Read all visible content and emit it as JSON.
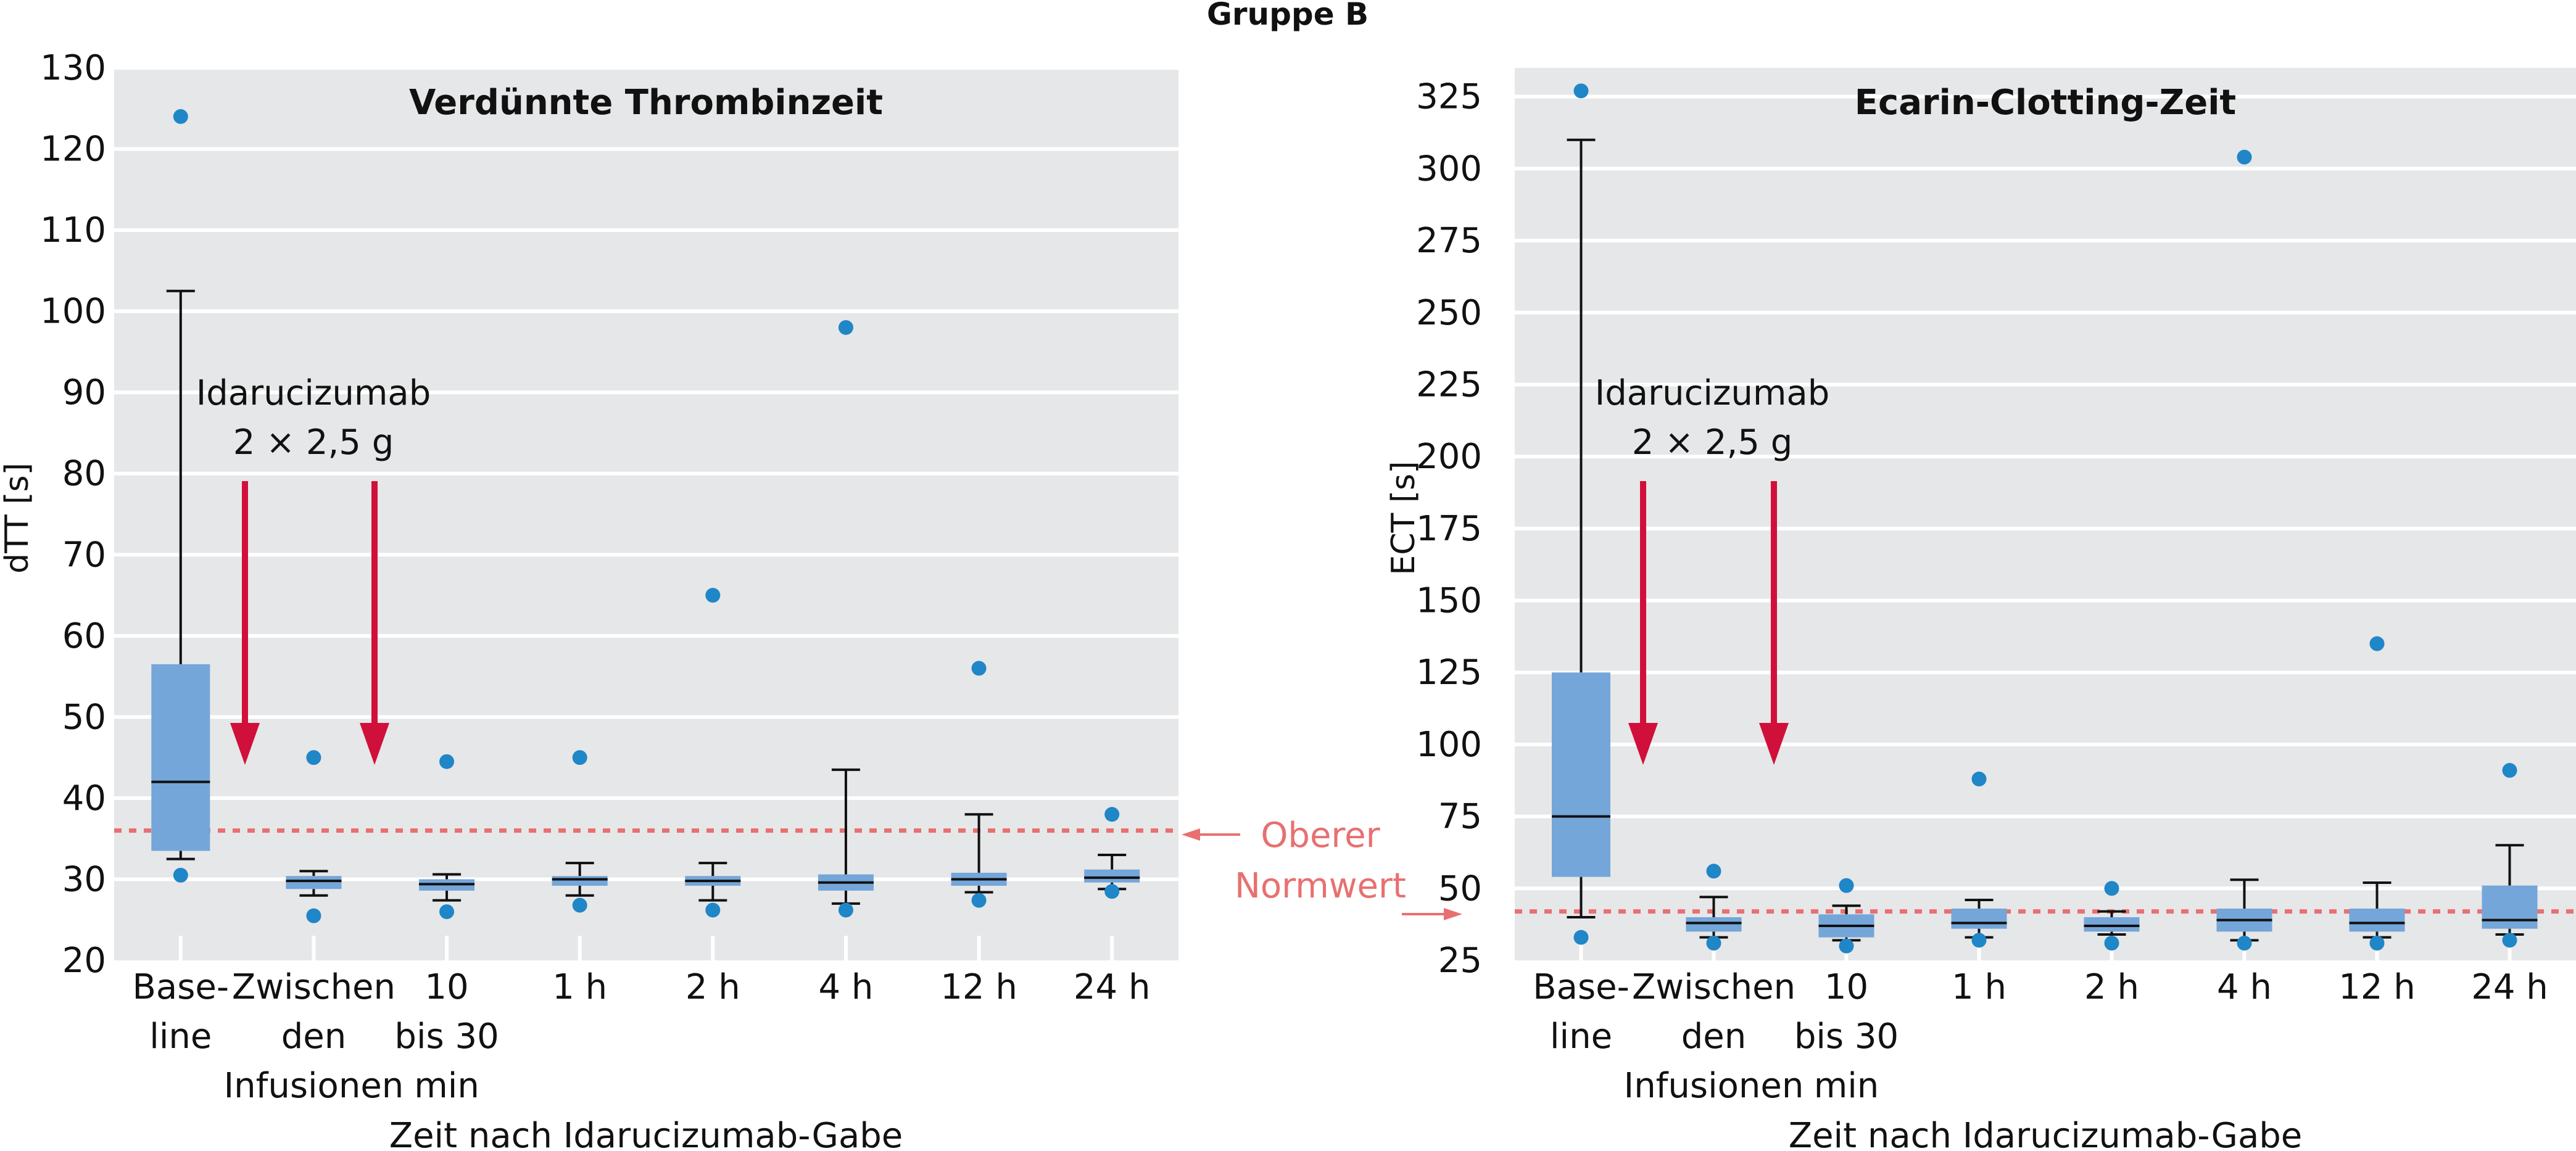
{
  "figure": {
    "supertitle": "Gruppe B",
    "note_label": [
      "Oberer",
      "Normwert"
    ],
    "colors": {
      "panel_bg": "#e6e7e8",
      "grid": "#ffffff",
      "box": "#74a6d9",
      "median": "#111111",
      "outlier": "#1f86c8",
      "arrow": "#d0103a",
      "reference": "#e87070"
    }
  },
  "chart_data": [
    {
      "type": "box",
      "title": "Verdünnte Thrombinzeit",
      "ylabel": "dTT [s]",
      "xlabel": "Zeit nach Idarucizumab-Gabe",
      "ylim": [
        20,
        130
      ],
      "yticks": [
        20,
        30,
        40,
        50,
        60,
        70,
        80,
        90,
        100,
        110,
        120,
        130
      ],
      "grid": true,
      "reference_line": 36,
      "annotation": [
        "Idarucizumab",
        "2 × 2,5 g"
      ],
      "categories": [
        [
          "Base-",
          "line"
        ],
        [
          "Zwischen",
          "den",
          "Infusionen"
        ],
        [
          "10",
          "bis 30",
          "min"
        ],
        [
          "1 h"
        ],
        [
          "2 h"
        ],
        [
          "4 h"
        ],
        [
          "12 h"
        ],
        [
          "24 h"
        ]
      ],
      "boxes": [
        {
          "whisker_low": 32.5,
          "q1": 33.5,
          "median": 42,
          "q3": 56.5,
          "whisker_high": 102.5,
          "outliers": [
            124,
            30.5
          ]
        },
        {
          "whisker_low": 28,
          "q1": 28.8,
          "median": 29.8,
          "q3": 30.4,
          "whisker_high": 31,
          "outliers": [
            45,
            25.5
          ]
        },
        {
          "whisker_low": 27.4,
          "q1": 28.6,
          "median": 29.4,
          "q3": 30,
          "whisker_high": 30.6,
          "outliers": [
            44.5,
            26
          ]
        },
        {
          "whisker_low": 28,
          "q1": 29.2,
          "median": 30,
          "q3": 30.4,
          "whisker_high": 32,
          "outliers": [
            45,
            26.8
          ]
        },
        {
          "whisker_low": 27.4,
          "q1": 29.2,
          "median": 29.8,
          "q3": 30.4,
          "whisker_high": 32,
          "outliers": [
            65,
            26.2
          ]
        },
        {
          "whisker_low": 27,
          "q1": 28.6,
          "median": 29.6,
          "q3": 30.6,
          "whisker_high": 43.5,
          "outliers": [
            98,
            26.2
          ]
        },
        {
          "whisker_low": 28.4,
          "q1": 29.2,
          "median": 30,
          "q3": 30.8,
          "whisker_high": 38,
          "outliers": [
            56,
            27.4
          ]
        },
        {
          "whisker_low": 28.8,
          "q1": 29.6,
          "median": 30.2,
          "q3": 31.2,
          "whisker_high": 33,
          "outliers": [
            38,
            28.5
          ]
        }
      ]
    },
    {
      "type": "box",
      "title": "Ecarin-Clotting-Zeit",
      "ylabel": "ECT [s]",
      "xlabel": "Zeit nach Idarucizumab-Gabe",
      "ylim": [
        25,
        335
      ],
      "yticks": [
        25,
        50,
        75,
        100,
        125,
        150,
        175,
        200,
        225,
        250,
        275,
        300,
        325
      ],
      "grid": true,
      "reference_line": 42,
      "annotation": [
        "Idarucizumab",
        "2 × 2,5 g"
      ],
      "categories": [
        [
          "Base-",
          "line"
        ],
        [
          "Zwischen",
          "den",
          "Infusionen"
        ],
        [
          "10",
          "bis 30",
          "min"
        ],
        [
          "1 h"
        ],
        [
          "2 h"
        ],
        [
          "4 h"
        ],
        [
          "12 h"
        ],
        [
          "24 h"
        ]
      ],
      "boxes": [
        {
          "whisker_low": 40,
          "q1": 54,
          "median": 75,
          "q3": 125,
          "whisker_high": 310,
          "outliers": [
            327,
            33
          ]
        },
        {
          "whisker_low": 33,
          "q1": 35,
          "median": 38,
          "q3": 40,
          "whisker_high": 47,
          "outliers": [
            56,
            31
          ]
        },
        {
          "whisker_low": 32,
          "q1": 33,
          "median": 37,
          "q3": 41,
          "whisker_high": 44,
          "outliers": [
            51,
            30
          ]
        },
        {
          "whisker_low": 33,
          "q1": 36,
          "median": 38,
          "q3": 43,
          "whisker_high": 46,
          "outliers": [
            88,
            32
          ]
        },
        {
          "whisker_low": 34,
          "q1": 35,
          "median": 37,
          "q3": 40,
          "whisker_high": 42,
          "outliers": [
            50,
            31
          ]
        },
        {
          "whisker_low": 32,
          "q1": 35,
          "median": 39,
          "q3": 43,
          "whisker_high": 53,
          "outliers": [
            304,
            31
          ]
        },
        {
          "whisker_low": 33,
          "q1": 35,
          "median": 38,
          "q3": 43,
          "whisker_high": 52,
          "outliers": [
            135,
            31
          ]
        },
        {
          "whisker_low": 34,
          "q1": 36,
          "median": 39,
          "q3": 51,
          "whisker_high": 65,
          "outliers": [
            91,
            32
          ]
        }
      ]
    }
  ]
}
